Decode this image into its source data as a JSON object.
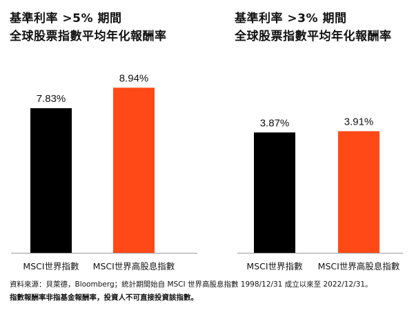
{
  "chart_data": [
    {
      "type": "bar",
      "title_lines": [
        "基準利率 >5% 期間",
        "全球股票指數平均年化報酬率"
      ],
      "categories": [
        "MSCI世界指數",
        "MSCI世界高股息指數"
      ],
      "values": [
        7.83,
        8.94
      ],
      "value_labels": [
        "7.83%",
        "8.94%"
      ],
      "bar_colors": [
        "#000000",
        "#ff4a17"
      ],
      "ylim": [
        0,
        10.07
      ],
      "grid": false,
      "legend": "none"
    },
    {
      "type": "bar",
      "title_lines": [
        "基準利率 >3% 期間",
        "全球股票指數平均年化報酬率"
      ],
      "categories": [
        "MSCI世界指數",
        "MSCI世界高股息指數"
      ],
      "values": [
        3.87,
        3.91
      ],
      "value_labels": [
        "3.87%",
        "3.91%"
      ],
      "bar_colors": [
        "#000000",
        "#ff4a17"
      ],
      "ylim": [
        0,
        5.98
      ],
      "grid": false,
      "legend": "none"
    }
  ],
  "footnote": {
    "source": "資料來源：貝萊德，Bloomberg；統計期間始自 MSCI 世界高股息指數 1998/12/31 成立以來至 2022/12/31。",
    "disclaimer": "指數報酬率非指基金報酬率，投資人不可直接投資該指數。"
  }
}
